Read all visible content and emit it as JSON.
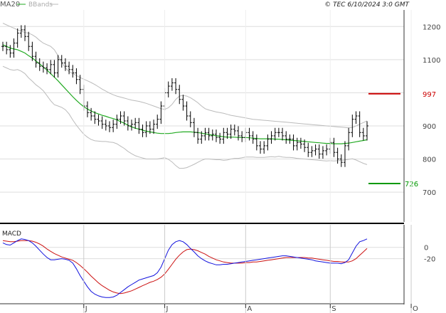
{
  "header": {
    "ma_label": "MA20",
    "bbands_label": "BBands",
    "copyright": "© TEC 6/10/2024 3:0 GMT"
  },
  "colors": {
    "ma": "#22aa22",
    "bands": "#bbbbbb",
    "bars": "#000000",
    "macd": "#1111dd",
    "signal": "#cc1111",
    "resistance": "#cc0000",
    "support": "#009900",
    "grid": "#dddddd"
  },
  "chart_data": [
    {
      "type": "ohlc",
      "price_axis": {
        "ylim": [
          610,
          1250
        ],
        "ticks": [
          700,
          800,
          900,
          1000,
          1100,
          1200
        ],
        "tick_labels": [
          "700",
          "800",
          "900",
          "",
          "1100",
          "1200"
        ]
      },
      "levels": [
        {
          "name": "resistance",
          "value": 997,
          "label": "997"
        },
        {
          "name": "support",
          "value": 726,
          "label": "726"
        }
      ],
      "x_labels": [
        {
          "label": "J",
          "index": 22
        },
        {
          "label": "J",
          "index": 44
        },
        {
          "label": "A",
          "index": 66
        },
        {
          "label": "S",
          "index": 89
        },
        {
          "label": "O",
          "index": 111
        }
      ],
      "close": [
        1140,
        1130,
        1120,
        1150,
        1180,
        1190,
        1170,
        1140,
        1110,
        1090,
        1080,
        1075,
        1070,
        1085,
        1060,
        1100,
        1090,
        1080,
        1070,
        1060,
        1040,
        1010,
        960,
        940,
        930,
        920,
        915,
        905,
        900,
        895,
        905,
        920,
        930,
        915,
        900,
        905,
        910,
        890,
        880,
        900,
        890,
        905,
        920,
        960,
        1000,
        1020,
        1030,
        1010,
        980,
        960,
        930,
        910,
        880,
        860,
        870,
        880,
        870,
        875,
        865,
        860,
        880,
        875,
        890,
        885,
        870,
        865,
        880,
        870,
        860,
        840,
        830,
        840,
        860,
        870,
        880,
        880,
        870,
        860,
        860,
        840,
        850,
        845,
        835,
        820,
        825,
        830,
        815,
        825,
        830,
        850,
        820,
        800,
        790,
        840,
        880,
        920,
        930,
        880,
        870,
        900
      ],
      "ma20": [
        1145,
        1140,
        1135,
        1132,
        1130,
        1125,
        1120,
        1112,
        1105,
        1096,
        1087,
        1078,
        1068,
        1058,
        1047,
        1036,
        1024,
        1012,
        1000,
        988,
        977,
        967,
        958,
        951,
        945,
        940,
        936,
        932,
        929,
        925,
        922,
        918,
        913,
        908,
        902,
        897,
        893,
        890,
        887,
        884,
        882,
        880,
        878,
        877,
        877,
        877,
        878,
        880,
        881,
        882,
        882,
        882,
        881,
        880,
        878,
        876,
        874,
        872,
        870,
        869,
        867,
        866,
        866,
        866,
        865,
        865,
        865,
        864,
        863,
        862,
        861,
        861,
        861,
        861,
        860,
        860,
        859,
        858,
        857,
        856,
        855,
        854,
        853,
        852,
        851,
        850,
        849,
        848,
        847,
        847,
        846,
        846,
        846,
        847,
        848,
        850,
        852,
        854,
        856,
        858
      ],
      "band_upper": [
        1210,
        1205,
        1200,
        1195,
        1190,
        1186,
        1182,
        1180,
        1175,
        1168,
        1158,
        1150,
        1145,
        1140,
        1130,
        1112,
        1092,
        1075,
        1064,
        1058,
        1052,
        1046,
        1041,
        1036,
        1031,
        1025,
        1018,
        1011,
        1005,
        999,
        994,
        990,
        987,
        984,
        981,
        978,
        976,
        974,
        971,
        968,
        964,
        960,
        956,
        952,
        950,
        955,
        965,
        980,
        990,
        992,
        990,
        985,
        978,
        970,
        960,
        952,
        948,
        945,
        942,
        940,
        938,
        935,
        932,
        930,
        928,
        926,
        924,
        922,
        920,
        919,
        918,
        917,
        916,
        915,
        914,
        913,
        912,
        911,
        910,
        909,
        908,
        907,
        906,
        905,
        904,
        903,
        902,
        901,
        900,
        899,
        898,
        897,
        896,
        895,
        894,
        895,
        900,
        905,
        910,
        915
      ],
      "band_lower": [
        1080,
        1075,
        1070,
        1068,
        1070,
        1065,
        1058,
        1045,
        1035,
        1024,
        1016,
        1006,
        991,
        976,
        964,
        960,
        956,
        949,
        936,
        918,
        902,
        888,
        875,
        866,
        859,
        855,
        854,
        853,
        853,
        851,
        850,
        846,
        839,
        832,
        823,
        816,
        810,
        806,
        803,
        800,
        800,
        800,
        800,
        802,
        804,
        799,
        791,
        780,
        772,
        772,
        774,
        779,
        784,
        790,
        796,
        800,
        800,
        799,
        798,
        798,
        796,
        797,
        800,
        802,
        802,
        804,
        806,
        806,
        806,
        805,
        805,
        805,
        806,
        807,
        806,
        808,
        806,
        805,
        805,
        804,
        802,
        801,
        800,
        799,
        798,
        797,
        796,
        795,
        794,
        795,
        794,
        795,
        796,
        797,
        799,
        801,
        797,
        792,
        787,
        783
      ]
    },
    {
      "type": "line",
      "name": "MACD",
      "y_axis": {
        "ylim": [
          -100,
          40
        ],
        "ticks": [
          0,
          -20
        ],
        "tick_labels": [
          "0",
          "-20"
        ]
      },
      "macd": [
        8,
        5,
        4,
        8,
        12,
        15,
        14,
        12,
        8,
        2,
        -5,
        -12,
        -18,
        -22,
        -22,
        -21,
        -20,
        -21,
        -23,
        -28,
        -38,
        -50,
        -60,
        -70,
        -78,
        -83,
        -86,
        -88,
        -89,
        -89,
        -88,
        -85,
        -80,
        -75,
        -70,
        -66,
        -62,
        -58,
        -56,
        -54,
        -52,
        -50,
        -45,
        -35,
        -20,
        -5,
        5,
        10,
        12,
        10,
        5,
        -2,
        -8,
        -15,
        -20,
        -24,
        -27,
        -29,
        -31,
        -31,
        -30,
        -30,
        -29,
        -28,
        -27,
        -26,
        -25,
        -24,
        -23,
        -22,
        -21,
        -20,
        -19,
        -18,
        -17,
        -16,
        -15,
        -15,
        -16,
        -17,
        -18,
        -19,
        -20,
        -21,
        -22,
        -24,
        -25,
        -26,
        -27,
        -28,
        -28,
        -28,
        -29,
        -27,
        -22,
        -10,
        2,
        10,
        12,
        15
      ],
      "signal": [
        12,
        11,
        10,
        10,
        11,
        12,
        12,
        12,
        11,
        9,
        6,
        2,
        -3,
        -7,
        -11,
        -14,
        -17,
        -19,
        -21,
        -23,
        -27,
        -32,
        -38,
        -44,
        -51,
        -57,
        -63,
        -68,
        -72,
        -76,
        -79,
        -81,
        -82,
        -81,
        -79,
        -77,
        -74,
        -71,
        -68,
        -65,
        -62,
        -60,
        -57,
        -53,
        -47,
        -39,
        -30,
        -21,
        -14,
        -8,
        -4,
        -3,
        -4,
        -6,
        -9,
        -12,
        -16,
        -19,
        -22,
        -24,
        -26,
        -27,
        -28,
        -28,
        -28,
        -28,
        -27,
        -27,
        -26,
        -26,
        -25,
        -24,
        -23,
        -22,
        -21,
        -20,
        -19,
        -18,
        -18,
        -18,
        -18,
        -18,
        -18,
        -19,
        -19,
        -20,
        -21,
        -22,
        -23,
        -24,
        -25,
        -25,
        -26,
        -26,
        -26,
        -24,
        -20,
        -14,
        -8,
        -2
      ]
    }
  ]
}
